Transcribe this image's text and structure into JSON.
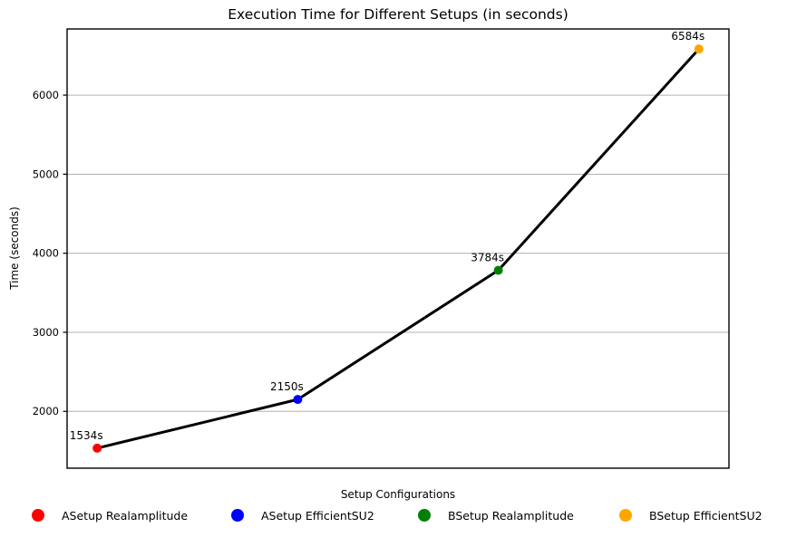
{
  "chart_data": {
    "type": "line",
    "title": "Execution Time for Different Setups (in seconds)",
    "xlabel": "Setup Configurations",
    "ylabel": "Time (seconds)",
    "categories": [
      "ASetup Realamplitude",
      "ASetup EfficientSU2",
      "BSetup Realamplitude",
      "BSetup EfficientSU2"
    ],
    "values": [
      1534,
      2150,
      3784,
      6584
    ],
    "point_labels": [
      "1534s",
      "2150s",
      "3784s",
      "6584s"
    ],
    "point_colors": [
      "#ff0000",
      "#0000ff",
      "#008000",
      "#ffa500"
    ],
    "line_color": "#000000",
    "yticks": [
      2000,
      3000,
      4000,
      5000,
      6000
    ],
    "ylim": [
      1281,
      6837
    ],
    "grid": true,
    "grid_color": "#b0b0b0",
    "axis_color": "#000000",
    "text_color": "#000000",
    "legend_position": "bottom"
  }
}
